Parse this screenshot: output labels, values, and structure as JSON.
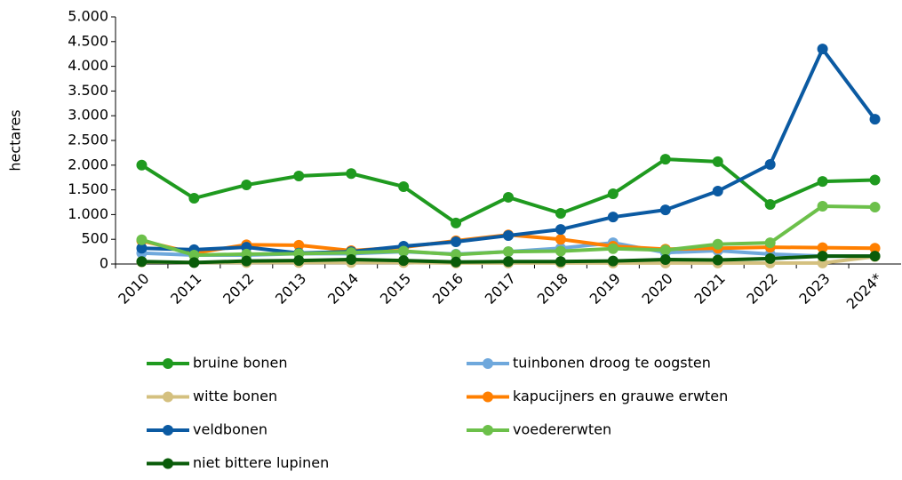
{
  "chart_data": {
    "type": "line",
    "ylabel": "hectares",
    "categories": [
      "2010",
      "2011",
      "2012",
      "2013",
      "2014",
      "2015",
      "2016",
      "2017",
      "2018",
      "2019",
      "2020",
      "2021",
      "2022",
      "2023",
      "2024*"
    ],
    "ylim": [
      0,
      5000
    ],
    "yticks": [
      0,
      500,
      {
        "value": 1000,
        "label": "1.000"
      },
      {
        "value": 1500,
        "label": "1.500"
      },
      {
        "value": 2000,
        "label": "2.000"
      },
      {
        "value": 2500,
        "label": "2.500"
      },
      {
        "value": 3000,
        "label": "3.000"
      },
      {
        "value": 3500,
        "label": "3.500"
      },
      {
        "value": 4000,
        "label": "4.000"
      },
      {
        "value": 4500,
        "label": "4.500"
      },
      {
        "value": 5000,
        "label": "5.000"
      }
    ],
    "series": [
      {
        "name": "bruine bonen",
        "color": "#1f9a1f",
        "values": [
          2000,
          1330,
          1600,
          1780,
          1830,
          1565,
          830,
          1350,
          1025,
          1420,
          2120,
          2070,
          1205,
          1670,
          1700
        ]
      },
      {
        "name": "tuinbonen droog te oogsten",
        "color": "#6fa8dc",
        "values": [
          220,
          180,
          180,
          210,
          210,
          250,
          200,
          250,
          320,
          430,
          230,
          270,
          200,
          160,
          160
        ]
      },
      {
        "name": "witte bonen",
        "color": "#d4c07f",
        "values": [
          40,
          30,
          30,
          30,
          30,
          30,
          20,
          20,
          20,
          20,
          20,
          20,
          20,
          20,
          150
        ]
      },
      {
        "name": "kapucijners en grauwe erwten",
        "color": "#ff7f00",
        "values": [
          470,
          220,
          390,
          380,
          270,
          340,
          470,
          590,
          500,
          360,
          300,
          320,
          340,
          330,
          320
        ]
      },
      {
        "name": "veldbonen",
        "color": "#0b5aa2",
        "values": [
          320,
          290,
          340,
          220,
          250,
          360,
          450,
          575,
          700,
          950,
          1095,
          1475,
          2015,
          4350,
          2930
        ]
      },
      {
        "name": "voedererwten",
        "color": "#6cc04a",
        "values": [
          490,
          180,
          200,
          210,
          230,
          260,
          190,
          250,
          260,
          310,
          280,
          400,
          430,
          1170,
          1150
        ]
      },
      {
        "name": "niet bittere lupinen",
        "color": "#0a5c0a",
        "values": [
          50,
          30,
          60,
          70,
          90,
          70,
          40,
          50,
          50,
          60,
          90,
          80,
          110,
          160,
          160
        ]
      }
    ]
  }
}
